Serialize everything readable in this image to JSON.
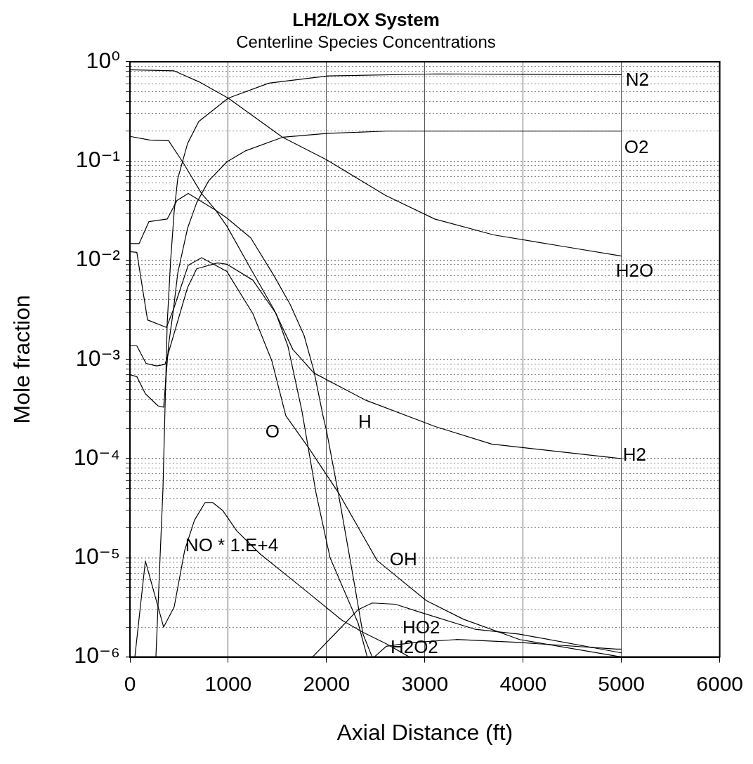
{
  "chart_data": {
    "type": "line",
    "title": "LH2/LOX System",
    "subtitle": "Centerline Species Concentrations",
    "xlabel": "Axial Distance (ft)",
    "ylabel": "Mole fraction",
    "log": "y",
    "grid": true,
    "legend": false,
    "marker": "none",
    "line_style": "solid",
    "xlim": [
      0,
      6000
    ],
    "xticks": [
      0,
      1000,
      2000,
      3000,
      4000,
      5000,
      6000
    ],
    "ylim": [
      1e-06,
      1
    ],
    "yticks": [
      {
        "value": 1e-06,
        "label": "10⁻⁶"
      },
      {
        "value": 2e-06,
        "label": null
      },
      {
        "value": 3e-06,
        "label": null
      },
      {
        "value": 4e-06,
        "label": null
      },
      {
        "value": 5e-06,
        "label": null
      },
      {
        "value": 6e-06,
        "label": null
      },
      {
        "value": 7e-06,
        "label": null
      },
      {
        "value": 8e-06,
        "label": null
      },
      {
        "value": 9e-06,
        "label": null
      },
      {
        "value": 1e-05,
        "label": "10⁻⁵"
      },
      {
        "value": 2e-05,
        "label": null
      },
      {
        "value": 3e-05,
        "label": null
      },
      {
        "value": 4e-05,
        "label": null
      },
      {
        "value": 5e-05,
        "label": null
      },
      {
        "value": 6e-05,
        "label": null
      },
      {
        "value": 7e-05,
        "label": null
      },
      {
        "value": 8e-05,
        "label": null
      },
      {
        "value": 9e-05,
        "label": null
      },
      {
        "value": 0.0001,
        "label": "10⁻⁴"
      },
      {
        "value": 0.0002,
        "label": null
      },
      {
        "value": 0.0003,
        "label": null
      },
      {
        "value": 0.0004,
        "label": null
      },
      {
        "value": 0.0005,
        "label": null
      },
      {
        "value": 0.0006,
        "label": null
      },
      {
        "value": 0.0007,
        "label": null
      },
      {
        "value": 0.0008,
        "label": null
      },
      {
        "value": 0.0009,
        "label": null
      },
      {
        "value": 0.001,
        "label": "10⁻³"
      },
      {
        "value": 0.002,
        "label": null
      },
      {
        "value": 0.003,
        "label": null
      },
      {
        "value": 0.004,
        "label": null
      },
      {
        "value": 0.005,
        "label": null
      },
      {
        "value": 0.006,
        "label": null
      },
      {
        "value": 0.007,
        "label": null
      },
      {
        "value": 0.008,
        "label": null
      },
      {
        "value": 0.009,
        "label": null
      },
      {
        "value": 0.01,
        "label": "10⁻²"
      },
      {
        "value": 0.02,
        "label": null
      },
      {
        "value": 0.03,
        "label": null
      },
      {
        "value": 0.04,
        "label": null
      },
      {
        "value": 0.05,
        "label": null
      },
      {
        "value": 0.06,
        "label": null
      },
      {
        "value": 0.07,
        "label": null
      },
      {
        "value": 0.08,
        "label": null
      },
      {
        "value": 0.09,
        "label": null
      },
      {
        "value": 0.1,
        "label": "10⁻¹"
      },
      {
        "value": 0.2,
        "label": null
      },
      {
        "value": 0.3,
        "label": null
      },
      {
        "value": 0.4,
        "label": null
      },
      {
        "value": 0.5,
        "label": null
      },
      {
        "value": 0.6,
        "label": null
      },
      {
        "value": 0.7,
        "label": null
      },
      {
        "value": 0.8,
        "label": null
      },
      {
        "value": 0.9,
        "label": null
      },
      {
        "value": 1,
        "label": "10⁰"
      }
    ],
    "series": [
      {
        "color": "#000000",
        "x": [
          0,
          450,
          700,
          1000,
          1550,
          2000,
          2600,
          3100,
          3700,
          4400,
          5000
        ],
        "values": [
          0.83,
          0.81,
          0.63,
          0.43,
          0.174,
          0.103,
          0.045,
          0.026,
          0.018,
          0.0138,
          0.011
        ]
      },
      {
        "color": "#000000",
        "x": [
          264,
          336,
          379,
          414,
          450,
          486,
          586,
          700,
          1000,
          1414,
          2014,
          3107,
          5000
        ],
        "values": [
          1e-06,
          5e-05,
          0.0023,
          0.01,
          0.031,
          0.066,
          0.15,
          0.25,
          0.43,
          0.61,
          0.72,
          0.755,
          0.74
        ]
      },
      {
        "color": "#000000",
        "x": [
          0,
          70,
          157,
          286,
          343,
          393,
          443,
          486,
          586,
          679,
          800,
          986,
          1179,
          1557,
          2014,
          2607,
          3679,
          5000
        ],
        "values": [
          0.0007,
          0.00067,
          0.00045,
          0.00034,
          0.00033,
          0.0014,
          0.0032,
          0.0074,
          0.021,
          0.038,
          0.063,
          0.098,
          0.127,
          0.174,
          0.19,
          0.2,
          0.2,
          0.2
        ]
      },
      {
        "color": "#000000",
        "x": [
          0,
          200,
          393,
          536,
          729,
          871,
          986,
          1229,
          1464,
          1657,
          1871,
          2393,
          3107,
          3679,
          5000
        ],
        "values": [
          0.177,
          0.163,
          0.16,
          0.098,
          0.047,
          0.032,
          0.022,
          0.0082,
          0.0032,
          0.00126,
          0.00073,
          0.00039,
          0.00021,
          0.00014,
          0.0001
        ]
      },
      {
        "color": "#000000",
        "x": [
          0,
          93,
          193,
          379,
          479,
          593,
          871,
          986,
          1229,
          1464,
          1629,
          1771,
          1871,
          1964,
          2000,
          2129,
          2271,
          2371,
          2464
        ],
        "values": [
          0.0147,
          0.0147,
          0.0245,
          0.026,
          0.04,
          0.047,
          0.032,
          0.0266,
          0.0168,
          0.007,
          0.0036,
          0.00175,
          0.00077,
          0.00027,
          0.00019,
          4e-05,
          6.4e-06,
          1.7e-06,
          1e-06
        ]
      },
      {
        "color": "#000000",
        "x": [
          0,
          70,
          179,
          371,
          443,
          593,
          729,
          986,
          1250,
          1443,
          1586,
          1821,
          2129,
          2514,
          3014,
          3393,
          3964,
          5000
        ],
        "values": [
          0.0122,
          0.012,
          0.0025,
          0.0021,
          0.0032,
          0.0089,
          0.0106,
          0.0077,
          0.0029,
          0.00097,
          0.00027,
          0.000127,
          4.4e-05,
          9.4e-06,
          3.7e-06,
          2.4e-06,
          1.5e-06,
          1e-06
        ]
      },
      {
        "color": "#000000",
        "x": [
          0,
          70,
          164,
          271,
          357,
          586,
          679,
          893,
          986,
          1250,
          1486,
          1607,
          1750,
          1893,
          2036,
          2321,
          2414
        ],
        "values": [
          0.00137,
          0.00137,
          0.00091,
          0.00086,
          0.00089,
          0.0053,
          0.0082,
          0.0094,
          0.0091,
          0.0063,
          0.0029,
          0.00136,
          0.0003,
          4.5e-05,
          1e-05,
          2.2e-06,
          1e-06
        ]
      },
      {
        "color": "#000000",
        "x": [
          50,
          157,
          343,
          450,
          557,
          657,
          764,
          843,
          943,
          1086,
          1321,
          1750,
          2157,
          2371,
          2607,
          2843
        ],
        "values": [
          1e-06,
          9.3e-06,
          2e-06,
          3.2e-06,
          1.19e-05,
          2.4e-05,
          3.6e-05,
          3.6e-05,
          3e-05,
          1.87e-05,
          1.1e-05,
          5e-06,
          2.35e-06,
          1.77e-06,
          1.36e-06,
          1e-06
        ]
      },
      {
        "color": "#000000",
        "x": [
          1857,
          2107,
          2321,
          2464,
          2700,
          2964,
          3514,
          3964,
          5000
        ],
        "values": [
          1e-06,
          1.8e-06,
          3e-06,
          3.5e-06,
          3.4e-06,
          2.8e-06,
          1.9e-06,
          1.7e-06,
          1.1e-06
        ]
      },
      {
        "color": "#000000",
        "x": [
          2486,
          2607,
          2893,
          3321,
          3964,
          4950,
          5000
        ],
        "values": [
          1e-06,
          1.28e-06,
          1.4e-06,
          1.5e-06,
          1.4e-06,
          1.2e-06,
          1.2e-06
        ]
      }
    ],
    "annotations": [
      {
        "text": "N2",
        "x": 5000,
        "y": 0.74
      },
      {
        "text": "O2",
        "x": 5000,
        "y": 0.2
      },
      {
        "text": "H2O",
        "x": 5000,
        "y": 0.011
      },
      {
        "text": "H2",
        "x": 5000,
        "y": 0.0001
      },
      {
        "text": "O",
        "x": 1750,
        "y": 0.0003
      },
      {
        "text": "H",
        "x": 2000,
        "y": 0.00019
      },
      {
        "text": "OH",
        "x": 2514,
        "y": 9.4e-06
      },
      {
        "text": "NO * 1.E+4",
        "x": 1086,
        "y": 1.87e-05
      },
      {
        "text": "HO2",
        "x": 2964,
        "y": 2.8e-06
      },
      {
        "text": "H2O2",
        "x": 2893,
        "y": 1.4e-06
      }
    ]
  }
}
